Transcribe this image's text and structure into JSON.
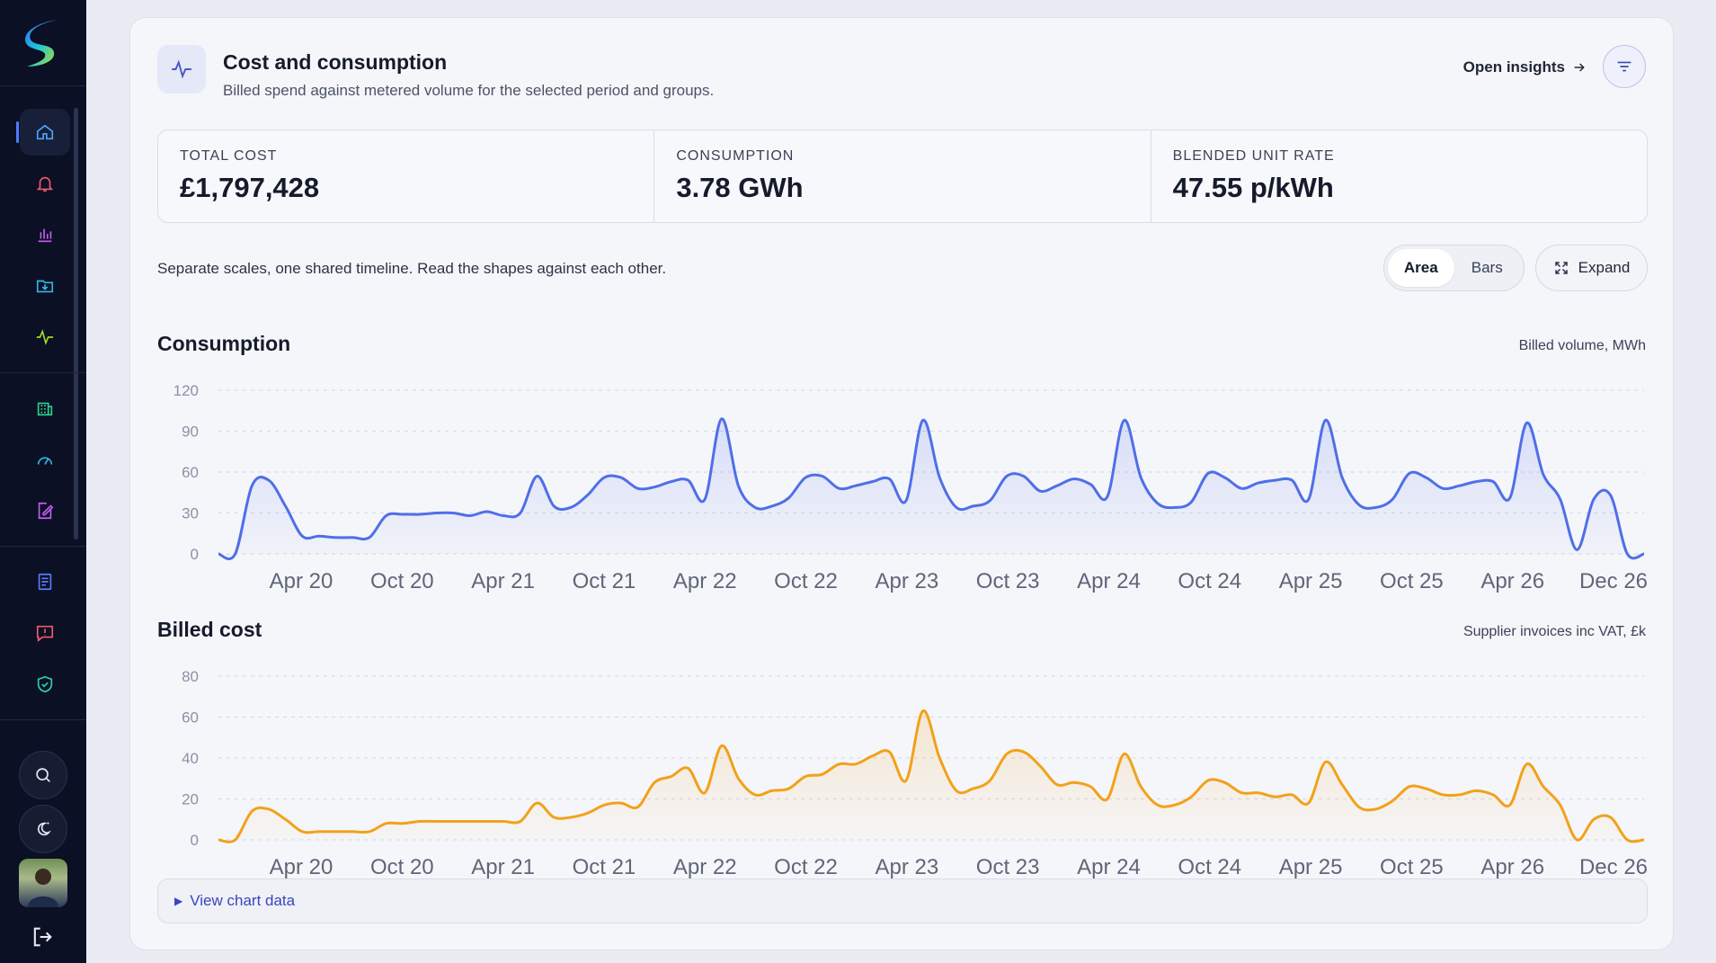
{
  "header": {
    "title": "Cost and consumption",
    "subtitle": "Billed spend against metered volume for the selected period and groups.",
    "open_insights": "Open insights"
  },
  "kpis": [
    {
      "label": "TOTAL COST",
      "value": "£1,797,428"
    },
    {
      "label": "CONSUMPTION",
      "value": "3.78 GWh"
    },
    {
      "label": "BLENDED UNIT RATE",
      "value": "47.55 p/kWh"
    }
  ],
  "controls": {
    "caption": "Separate scales, one shared timeline. Read the shapes against each other.",
    "view_options": [
      "Area",
      "Bars"
    ],
    "selected_view": "Area",
    "expand_label": "Expand"
  },
  "view_chart_data": "View chart data",
  "colors": {
    "consumption_line": "#4f6fe8",
    "cost_line": "#f2a11a",
    "sidebar_bg": "#0b1024",
    "accent": "#4f7cff"
  },
  "sidebar": {
    "icons": [
      "home-icon",
      "bell-icon",
      "bar-chart-icon",
      "folder-download-icon",
      "pulse-icon",
      "building-icon",
      "gauge-icon",
      "edit-document-icon",
      "report-icon",
      "alert-message-icon",
      "shield-check-icon"
    ],
    "bottom_icons": [
      "search-icon",
      "theme-toggle-icon",
      "avatar",
      "logout-icon"
    ]
  },
  "chart_data": [
    {
      "type": "area",
      "title": "Consumption",
      "unit_label": "Billed volume, MWh",
      "ylim": [
        0,
        120
      ],
      "yticks": [
        0,
        30,
        60,
        90,
        120
      ],
      "xticks": [
        "Apr 20",
        "Oct 20",
        "Apr 21",
        "Oct 21",
        "Apr 22",
        "Oct 22",
        "Apr 23",
        "Oct 23",
        "Apr 24",
        "Oct 24",
        "Apr 25",
        "Oct 25",
        "Apr 26",
        "Dec 26"
      ],
      "grid": true,
      "x_start": "Jan 20",
      "values": [
        0,
        0,
        50,
        54,
        35,
        13,
        13,
        12,
        12,
        12,
        28,
        29,
        29,
        30,
        30,
        28,
        31,
        28,
        30,
        57,
        35,
        34,
        43,
        56,
        56,
        48,
        49,
        53,
        54,
        40,
        99,
        50,
        34,
        35,
        41,
        56,
        57,
        48,
        50,
        53,
        55,
        39,
        98,
        56,
        34,
        35,
        39,
        57,
        57,
        46,
        50,
        55,
        51,
        42,
        98,
        56,
        37,
        34,
        38,
        59,
        56,
        48,
        52,
        54,
        54,
        40,
        98,
        56,
        36,
        34,
        40,
        59,
        56,
        48,
        50,
        53,
        53,
        41,
        96,
        58,
        40,
        3,
        40,
        43,
        0,
        0
      ]
    },
    {
      "type": "area",
      "title": "Billed cost",
      "unit_label": "Supplier invoices inc VAT, £k",
      "ylim": [
        0,
        80
      ],
      "yticks": [
        0,
        20,
        40,
        60,
        80
      ],
      "xticks": [
        "Apr 20",
        "Oct 20",
        "Apr 21",
        "Oct 21",
        "Apr 22",
        "Oct 22",
        "Apr 23",
        "Oct 23",
        "Apr 24",
        "Oct 24",
        "Apr 25",
        "Oct 25",
        "Apr 26",
        "Dec 26"
      ],
      "grid": true,
      "x_start": "Jan 20",
      "values": [
        0,
        0,
        14,
        15,
        10,
        4,
        4,
        4,
        4,
        4,
        8,
        8,
        9,
        9,
        9,
        9,
        9,
        9,
        9,
        18,
        11,
        11,
        13,
        17,
        18,
        16,
        28,
        31,
        35,
        23,
        46,
        30,
        22,
        24,
        25,
        31,
        32,
        37,
        37,
        41,
        43,
        29,
        63,
        40,
        24,
        25,
        29,
        42,
        43,
        36,
        27,
        28,
        26,
        20,
        42,
        26,
        17,
        17,
        21,
        29,
        28,
        23,
        23,
        21,
        22,
        18,
        38,
        27,
        16,
        15,
        19,
        26,
        25,
        22,
        22,
        24,
        22,
        17,
        37,
        26,
        17,
        0,
        10,
        11,
        0,
        0
      ]
    }
  ]
}
